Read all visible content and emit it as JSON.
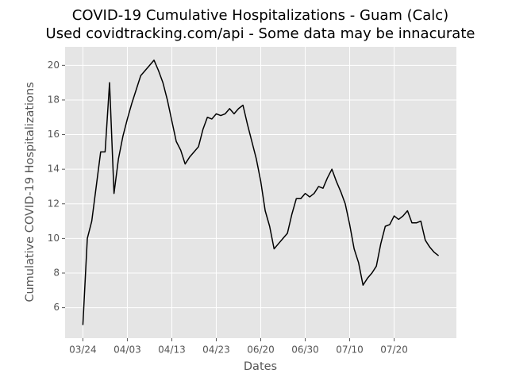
{
  "chart_data": {
    "type": "line",
    "title": "COVID-19 Cumulative Hospitalizations - Guam (Calc)",
    "subtitle": "Used covidtracking.com/api - Some data may be innacurate",
    "x_label": "Dates",
    "y_label": "Cumulative COVID-19 Hospitalizations",
    "categories": [
      "03/24",
      null,
      null,
      null,
      null,
      null,
      null,
      null,
      null,
      null,
      "04/03",
      null,
      null,
      null,
      null,
      null,
      null,
      null,
      null,
      null,
      "04/13",
      null,
      null,
      null,
      null,
      null,
      null,
      null,
      null,
      null,
      "04/23",
      null,
      null,
      null,
      null,
      null,
      null,
      null,
      null,
      null,
      "06/20",
      null,
      null,
      null,
      null,
      null,
      null,
      null,
      null,
      null,
      "06/30",
      null,
      null,
      null,
      null,
      null,
      null,
      null,
      null,
      null,
      "07/10",
      null,
      null,
      null,
      null,
      null,
      null,
      null,
      null,
      null,
      "07/20",
      null,
      null,
      null,
      null,
      null,
      null,
      null,
      null,
      null,
      null
    ],
    "values": [
      5.0,
      10.0,
      11.0,
      13.0,
      15.0,
      15.0,
      19.0,
      12.6,
      14.6,
      15.9,
      16.9,
      17.8,
      18.6,
      19.4,
      19.7,
      20.0,
      20.3,
      19.7,
      19.0,
      18.0,
      16.8,
      15.6,
      15.1,
      14.3,
      14.7,
      15.0,
      15.3,
      16.3,
      17.0,
      16.9,
      17.2,
      17.1,
      17.2,
      17.5,
      17.2,
      17.5,
      17.7,
      16.6,
      15.6,
      14.6,
      13.3,
      11.6,
      10.7,
      9.4,
      9.7,
      10.0,
      10.3,
      11.4,
      12.3,
      12.3,
      12.6,
      12.4,
      12.6,
      13.0,
      12.9,
      13.5,
      14.0,
      13.3,
      12.7,
      12.0,
      10.8,
      9.4,
      8.6,
      7.3,
      7.7,
      8.0,
      8.4,
      9.7,
      10.7,
      10.8,
      11.3,
      11.1,
      11.3,
      11.6,
      10.9,
      10.9,
      11.0,
      9.9,
      9.5,
      9.2,
      9.0
    ],
    "color": "#000000",
    "xlim": [
      -4,
      84
    ],
    "ylim": [
      4.24,
      21.07
    ],
    "yticks": [
      6,
      8,
      10,
      12,
      14,
      16,
      18,
      20
    ],
    "grid": true
  }
}
